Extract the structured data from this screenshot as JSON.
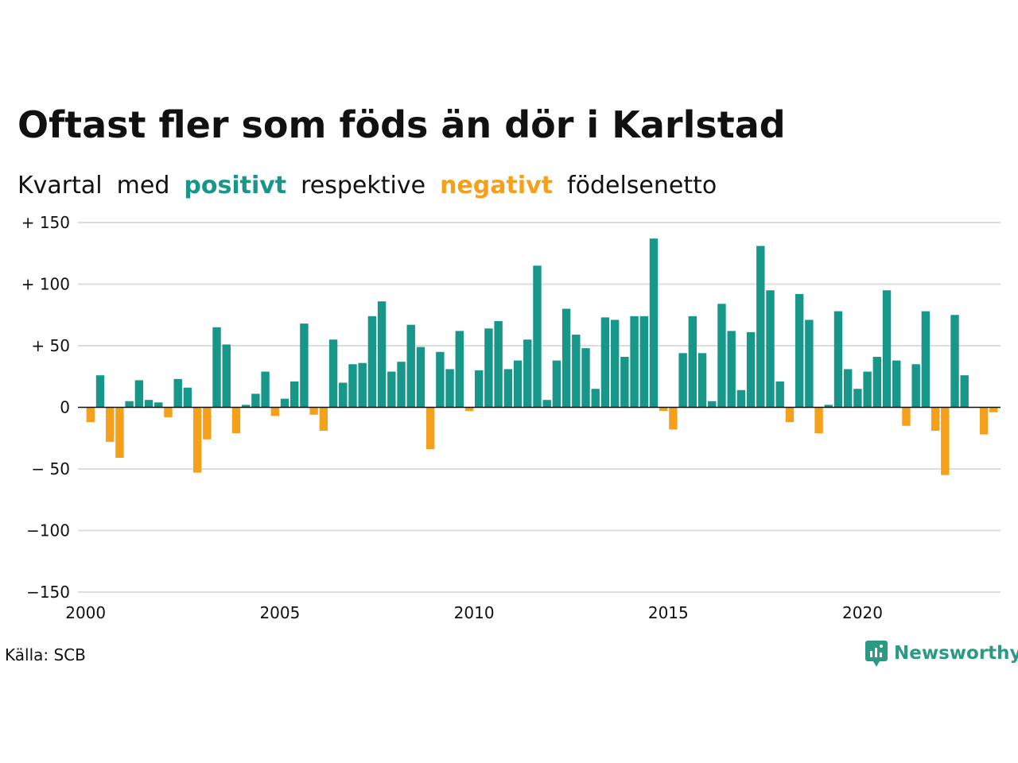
{
  "title": "Oftast fler som föds än dör i Karlstad",
  "subtitle": {
    "parts": [
      {
        "text": "Kvartal",
        "kind": "plain"
      },
      {
        "text": "med",
        "kind": "plain"
      },
      {
        "text": "positivt",
        "kind": "pos"
      },
      {
        "text": "respektive",
        "kind": "plain"
      },
      {
        "text": "negativt",
        "kind": "neg"
      },
      {
        "text": "födelsenetto",
        "kind": "plain"
      }
    ]
  },
  "source": "Källa: SCB",
  "brand": "Newsworthy",
  "colors": {
    "positive": "#17968a",
    "negative": "#f5a01a",
    "grid": "#dddddd",
    "axis": "#111111",
    "brand": "#2b9a82"
  },
  "chart_data": {
    "type": "bar",
    "title": "Oftast fler som föds än dör i Karlstad",
    "ylim": [
      -150,
      150
    ],
    "yticks": [
      {
        "value": 150,
        "label": "+ 150"
      },
      {
        "value": 100,
        "label": "+ 100"
      },
      {
        "value": 50,
        "label": "+  50"
      },
      {
        "value": 0,
        "label": "0"
      },
      {
        "value": -50,
        "label": "− 50"
      },
      {
        "value": -100,
        "label": "−100"
      },
      {
        "value": -150,
        "label": "−150"
      }
    ],
    "xticks": [
      "2000",
      "2005",
      "2010",
      "2015",
      "2020"
    ],
    "grid": true,
    "start_year": 2000,
    "values": [
      -12,
      26,
      -28,
      -41,
      5,
      22,
      6,
      4,
      -8,
      23,
      16,
      -53,
      -26,
      65,
      51,
      -21,
      2,
      11,
      29,
      -7,
      7,
      21,
      68,
      -6,
      -19,
      55,
      20,
      35,
      36,
      74,
      86,
      29,
      37,
      67,
      49,
      -34,
      45,
      31,
      62,
      -3,
      30,
      64,
      70,
      31,
      38,
      55,
      115,
      6,
      38,
      80,
      59,
      48,
      15,
      73,
      71,
      41,
      74,
      74,
      137,
      -3,
      -18,
      44,
      74,
      44,
      5,
      84,
      62,
      14,
      61,
      131,
      95,
      21,
      -12,
      92,
      71,
      -21,
      2,
      78,
      31,
      15,
      29,
      41,
      95,
      38,
      -15,
      35,
      78,
      -19,
      -55,
      75,
      26,
      0,
      -22,
      -4
    ]
  }
}
